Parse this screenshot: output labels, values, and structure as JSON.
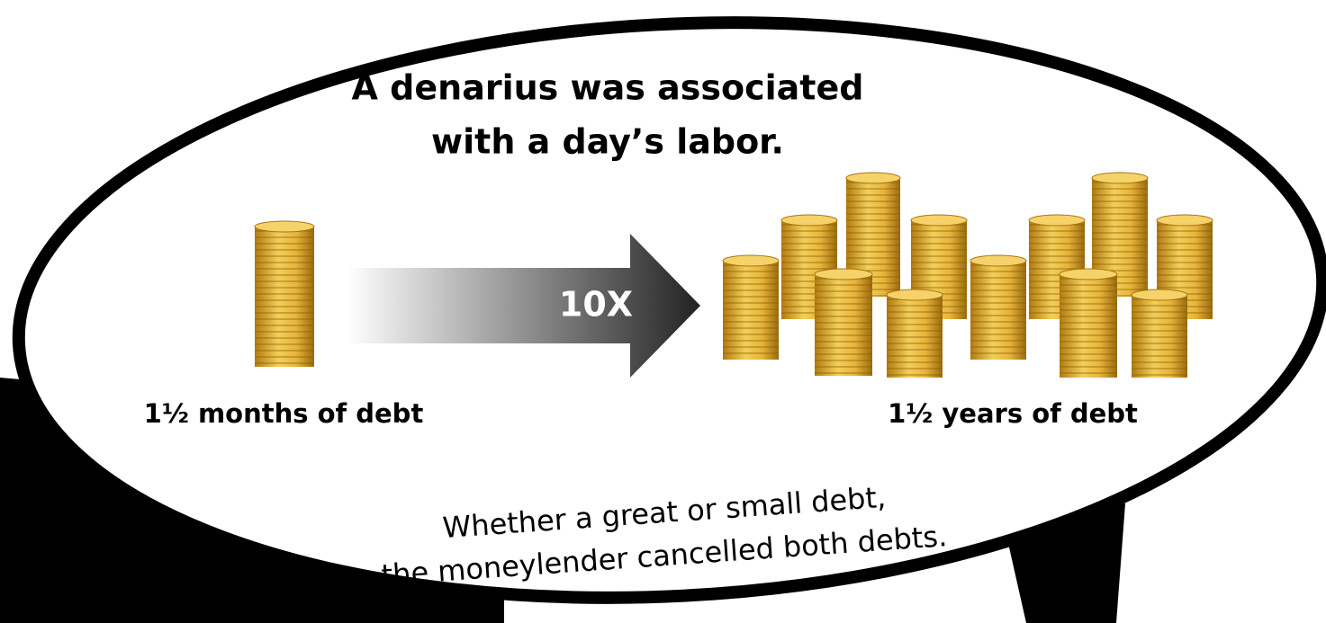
{
  "heading": {
    "lines": [
      "A denarius was associated",
      "with a day’s labor."
    ]
  },
  "arrow": {
    "label": "10X"
  },
  "left": {
    "label": "1½ months of debt"
  },
  "right": {
    "label": "1½ years of debt"
  },
  "note": {
    "lines": [
      "Whether a great or small debt,",
      "the moneylender cancelled both debts."
    ]
  }
}
